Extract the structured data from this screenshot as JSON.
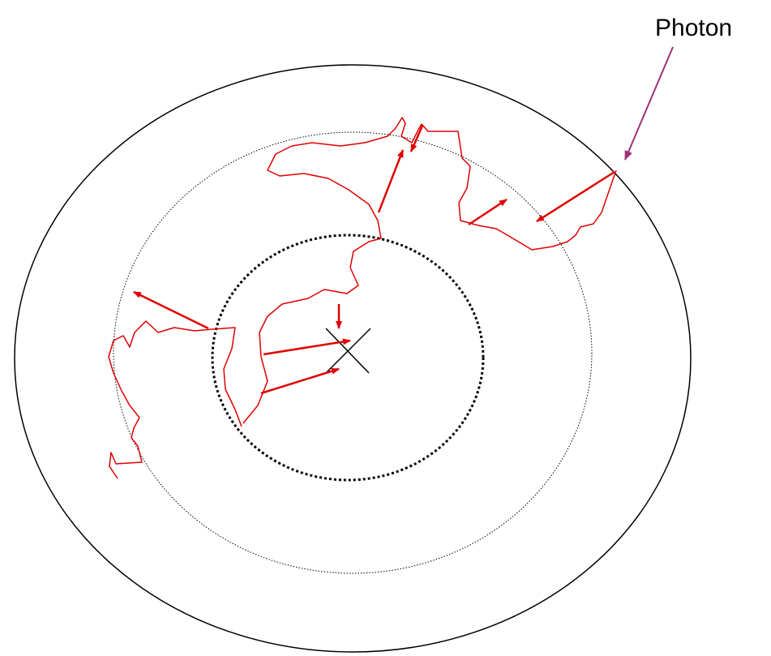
{
  "label": "Photon"
}
